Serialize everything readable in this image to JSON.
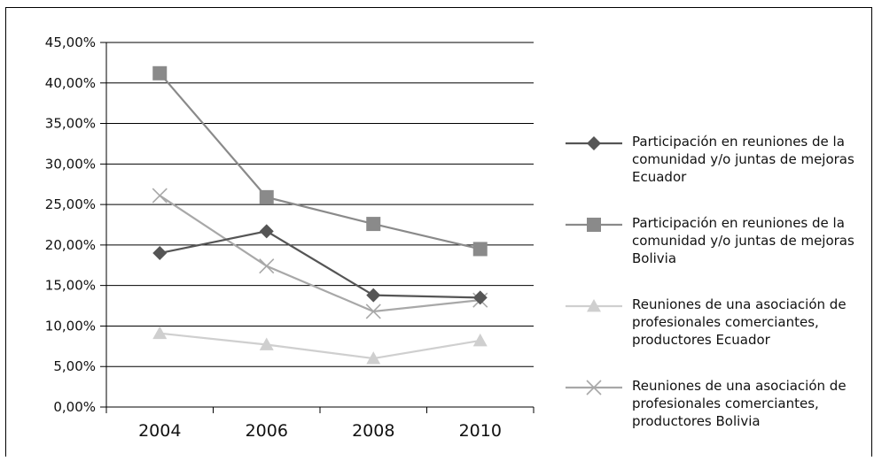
{
  "chart_data": {
    "type": "line",
    "title": "",
    "xlabel": "",
    "ylabel": "",
    "x": [
      "2004",
      "2006",
      "2008",
      "2010"
    ],
    "ylim": [
      0,
      45
    ],
    "yticks": [
      "0,00%",
      "5,00%",
      "10,00%",
      "15,00%",
      "20,00%",
      "25,00%",
      "30,00%",
      "35,00%",
      "40,00%",
      "45,00%"
    ],
    "grid": "horizontal",
    "legend_position": "right",
    "series": [
      {
        "name": "Participación en reuniones de la comunidad y/o juntas de mejoras Ecuador",
        "values": [
          19.0,
          21.7,
          13.8,
          13.5
        ],
        "marker": "diamond",
        "color": "#555555"
      },
      {
        "name": "Participación en reuniones de la comunidad y/o juntas de mejoras Bolivia",
        "values": [
          41.2,
          25.9,
          22.6,
          19.5
        ],
        "marker": "square",
        "color": "#8a8a8a"
      },
      {
        "name": "Reuniones de una asociación de profesionales comerciantes, productores Ecuador",
        "values": [
          9.1,
          7.7,
          6.0,
          8.2
        ],
        "marker": "triangle",
        "color": "#cfcfcf"
      },
      {
        "name": "Reuniones de una asociación de profesionales comerciantes, productores Bolivia",
        "values": [
          26.1,
          17.4,
          11.8,
          13.2
        ],
        "marker": "x",
        "color": "#a8a8a8"
      }
    ]
  }
}
